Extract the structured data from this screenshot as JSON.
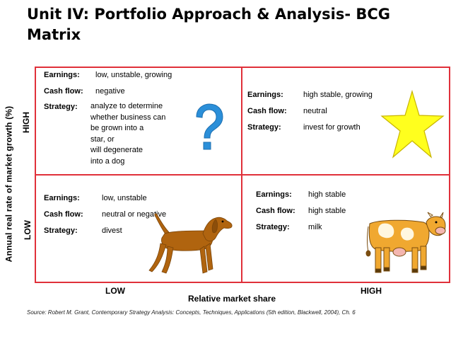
{
  "title": "Unit IV: Portfolio Approach & Analysis- BCG Matrix",
  "axes": {
    "y_label": "Annual real rate of market growth (%)",
    "y_high": "HIGH",
    "y_low": "LOW",
    "x_label": "Relative market share",
    "x_low": "LOW",
    "x_high": "HIGH"
  },
  "labels": {
    "earnings": "Earnings:",
    "cash_flow": "Cash flow:",
    "strategy": "Strategy:"
  },
  "quadrants": {
    "question": {
      "icon": "question-mark-icon",
      "earnings": "low, unstable, growing",
      "cash_flow": "negative",
      "strategy": [
        "analyze to determine",
        "whether business can",
        "be grown into a",
        "star, or",
        "will degenerate",
        "into a dog"
      ]
    },
    "star": {
      "icon": "star-icon",
      "earnings": "high stable, growing",
      "cash_flow": "neutral",
      "strategy": "invest for growth"
    },
    "dog": {
      "icon": "dog-icon",
      "earnings": "low, unstable",
      "cash_flow": "neutral or negative",
      "strategy": "divest"
    },
    "cow": {
      "icon": "cow-icon",
      "earnings": "high stable",
      "cash_flow": "high stable",
      "strategy": "milk"
    }
  },
  "colors": {
    "grid": "#e0303a",
    "question": "#2b8fd9",
    "star": "#ffff1e",
    "dog": "#b0640f",
    "cow": "#f0a830"
  },
  "source": "Source: Robert M. Grant, Contemporary Strategy Analysis: Concepts, Techniques, Applications (5th edition, Blackwell, 2004), Ch. 6"
}
